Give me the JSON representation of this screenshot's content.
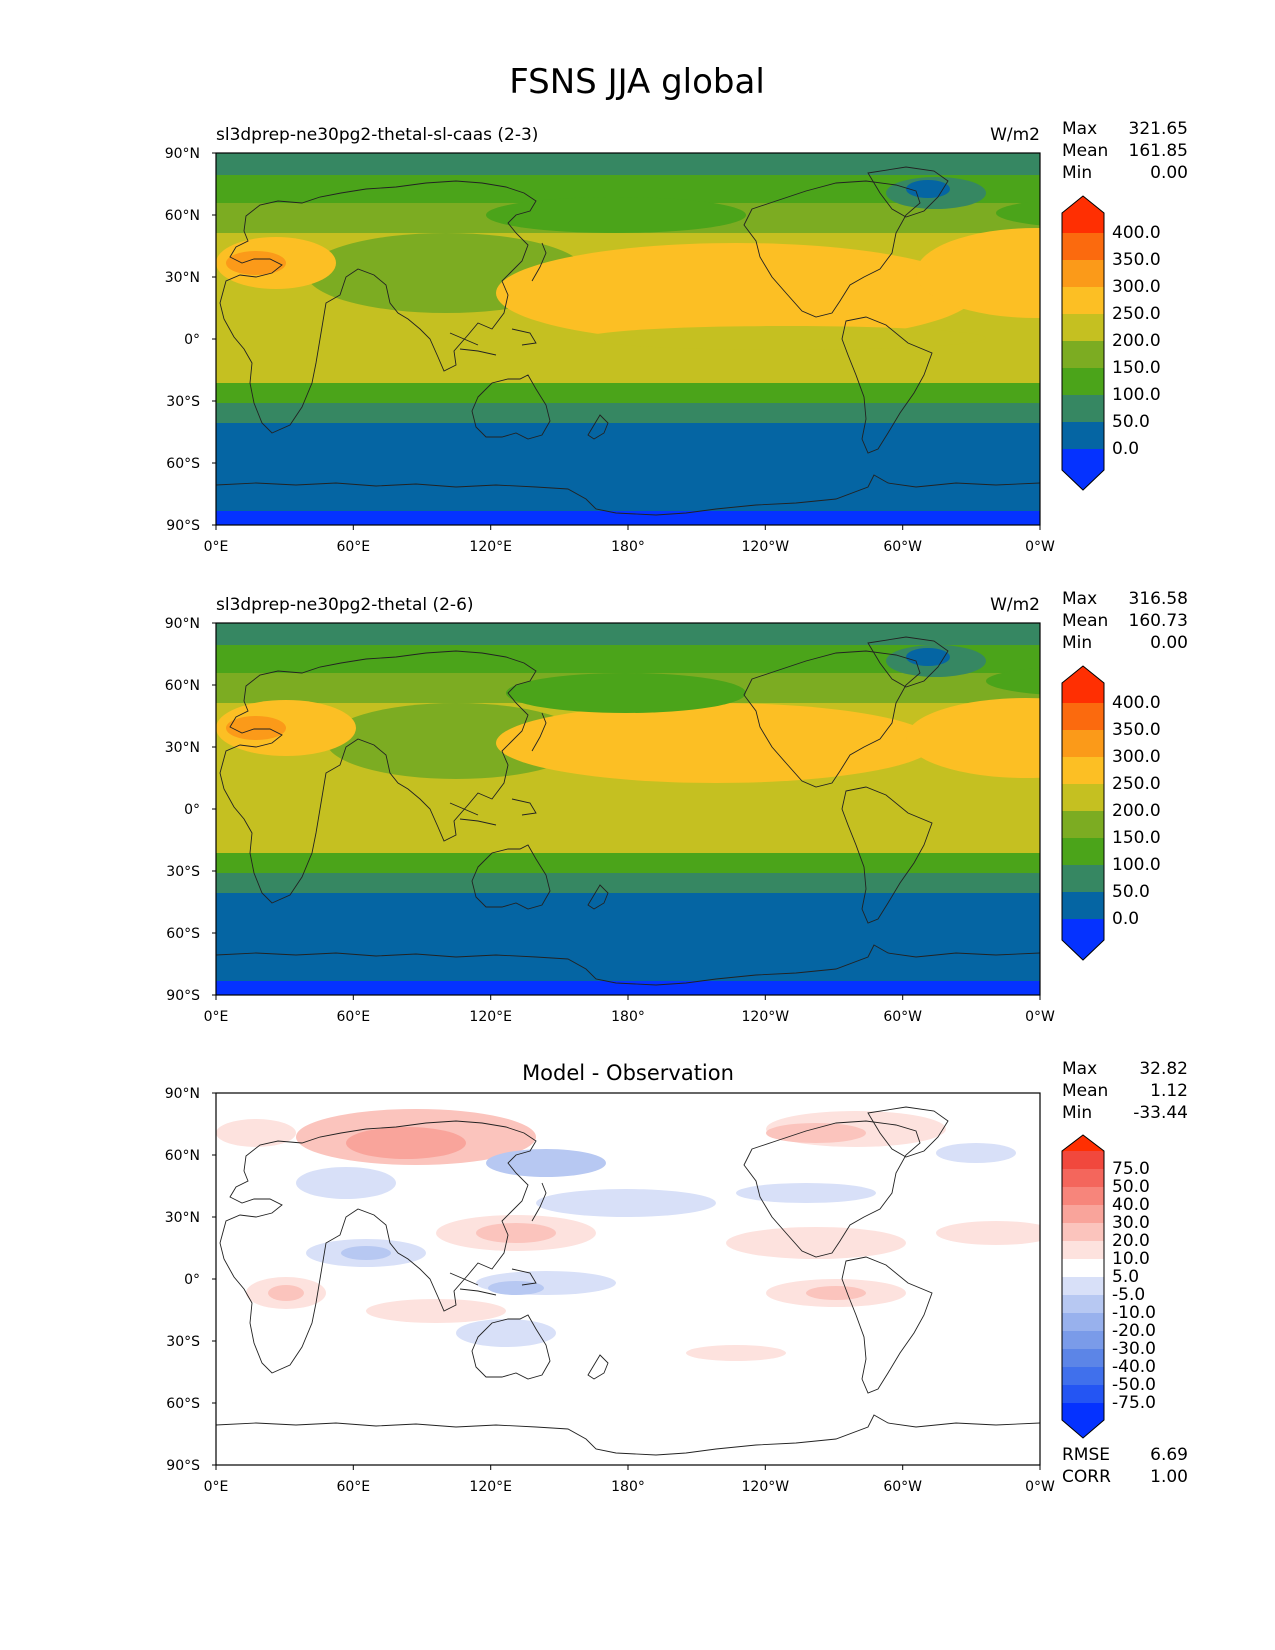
{
  "figure": {
    "title": "FSNS JJA global"
  },
  "axes": {
    "xticks": [
      "0°E",
      "60°E",
      "120°E",
      "180°",
      "120°W",
      "60°W",
      "0°W"
    ],
    "yticks": [
      "90°N",
      "60°N",
      "30°N",
      "0°",
      "30°S",
      "60°S",
      "90°S"
    ]
  },
  "stat_labels": {
    "max": "Max",
    "mean": "Mean",
    "min": "Min",
    "rmse": "RMSE",
    "corr": "CORR"
  },
  "panels": [
    {
      "title": "sl3dprep-ne30pg2-thetal-sl-caas (2-3)",
      "units": "W/m2",
      "stats": {
        "max": "321.65",
        "mean": "161.85",
        "min": "0.00"
      },
      "colorbar": {
        "labels": [
          "400.0",
          "350.0",
          "300.0",
          "250.0",
          "200.0",
          "150.0",
          "100.0",
          "50.0",
          "0.0"
        ],
        "colors_bottom_to_top": [
          "#0532ff",
          "#0565a3",
          "#368762",
          "#4ba41a",
          "#7cac22",
          "#c5c021",
          "#fcbf24",
          "#fb9a19",
          "#fb6a0e",
          "#ff2f02"
        ]
      }
    },
    {
      "title": "sl3dprep-ne30pg2-thetal (2-6)",
      "units": "W/m2",
      "stats": {
        "max": "316.58",
        "mean": "160.73",
        "min": "0.00"
      },
      "colorbar": {
        "labels": [
          "400.0",
          "350.0",
          "300.0",
          "250.0",
          "200.0",
          "150.0",
          "100.0",
          "50.0",
          "0.0"
        ],
        "colors_bottom_to_top": [
          "#0532ff",
          "#0565a3",
          "#368762",
          "#4ba41a",
          "#7cac22",
          "#c5c021",
          "#fcbf24",
          "#fb9a19",
          "#fb6a0e",
          "#ff2f02"
        ]
      }
    },
    {
      "title": "Model - Observation",
      "units": "",
      "stats": {
        "max": "32.82",
        "mean": "1.12",
        "min": "-33.44",
        "rmse": "6.69",
        "corr": "1.00"
      },
      "colorbar": {
        "labels": [
          "75.0",
          "50.0",
          "40.0",
          "30.0",
          "20.0",
          "10.0",
          "5.0",
          "-5.0",
          "-10.0",
          "-20.0",
          "-30.0",
          "-40.0",
          "-50.0",
          "-75.0"
        ],
        "colors_bottom_to_top": [
          "#0532ff",
          "#2455f3",
          "#4070ec",
          "#5c85e7",
          "#7a9be9",
          "#98b1ed",
          "#b7c8f2",
          "#d8e0f8",
          "#ffffff",
          "#fde2de",
          "#fbc4bd",
          "#f9a49b",
          "#f7857b",
          "#f4665c",
          "#f1483d",
          "#ff2f02"
        ]
      }
    }
  ]
}
